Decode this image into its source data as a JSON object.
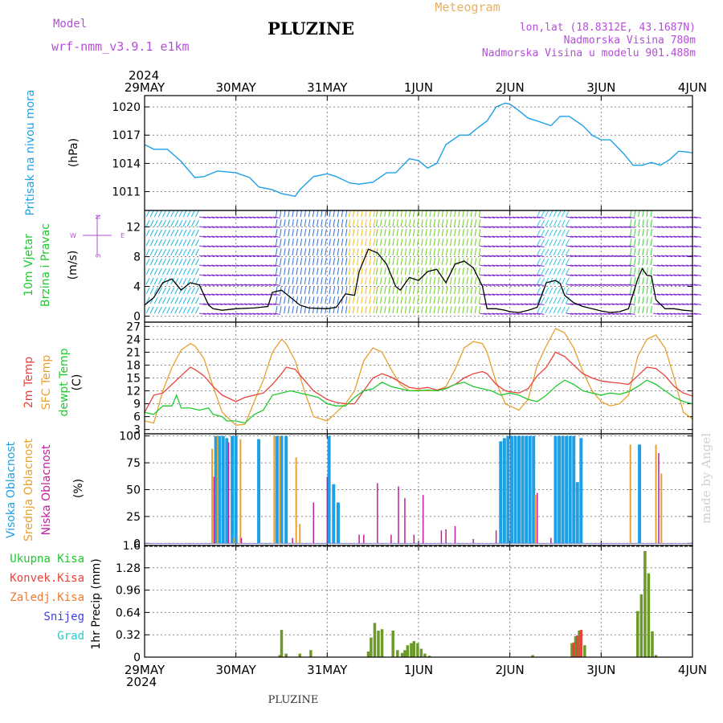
{
  "header": {
    "model_label": "Model",
    "model_name": "wrf-nmm_v3.9.1 e1km",
    "station": "PLUZINE",
    "meteogram_label": "Meteogram",
    "lonlat": "lon,lat (18.8312E, 43.1687N)",
    "elevation": "Nadmorska Visina 780m",
    "model_elevation": "Nadmorska Visina u modelu 901.488m",
    "year_top": "2024",
    "year_bottom": "2024",
    "footer_station": "PLUZINE",
    "credit": "made by Angel"
  },
  "time_axis": {
    "labels": [
      "29MAY",
      "30MAY",
      "31MAY",
      "1JUN",
      "2JUN",
      "3JUN",
      "4JUN"
    ]
  },
  "colors": {
    "pressure": "#1ea0e6",
    "wind_speed": "#000000",
    "wind_gust": "#e04020",
    "temp_2m": "#e8423c",
    "temp_sfc": "#e8a030",
    "dewpoint": "#22c830",
    "cloud_high": "#1ea0e6",
    "cloud_mid": "#e8a030",
    "cloud_low": "#c020a0",
    "precip_total": "#22c830",
    "precip_conv": "#e8423c",
    "precip_frozen": "#f07830",
    "snow": "#4040e0",
    "graupel": "#30c8c8"
  },
  "chart_data": [
    {
      "type": "line",
      "ylabel": [
        "Pritisak na nivou mora",
        "(hPa)"
      ],
      "yticks": [
        1011,
        1014,
        1017,
        1020
      ],
      "ylim": [
        1009,
        1021.2
      ],
      "series": [
        {
          "x": [
            0,
            0.1,
            0.25,
            0.4,
            0.55,
            0.65,
            0.8,
            1.0,
            1.15,
            1.25,
            1.4,
            1.5,
            1.65,
            1.7,
            1.85,
            2.0,
            2.1,
            2.25,
            2.35,
            2.5,
            2.65,
            2.75,
            2.9,
            3.0,
            3.1,
            3.2,
            3.3,
            3.45,
            3.55,
            3.65,
            3.75,
            3.85,
            3.95,
            4.0,
            4.1,
            4.2,
            4.3,
            4.45,
            4.55,
            4.65,
            4.8,
            4.9,
            5.0,
            5.1,
            5.25,
            5.35,
            5.45,
            5.55,
            5.65,
            5.75,
            5.85,
            5.95,
            6.0
          ],
          "y": [
            1016,
            1015.5,
            1015.5,
            1014.2,
            1012.5,
            1012.6,
            1013.2,
            1013.0,
            1012.5,
            1011.5,
            1011.2,
            1010.8,
            1010.5,
            1011.2,
            1012.6,
            1012.9,
            1012.6,
            1011.9,
            1011.8,
            1012.0,
            1013.0,
            1013.0,
            1014.5,
            1014.3,
            1013.5,
            1014.0,
            1016.0,
            1017.0,
            1017.0,
            1017.8,
            1018.5,
            1020.0,
            1020.4,
            1020.3,
            1019.6,
            1018.8,
            1018.5,
            1018.0,
            1019.0,
            1019.0,
            1018.0,
            1017.0,
            1016.5,
            1016.5,
            1015.0,
            1013.8,
            1013.8,
            1014.1,
            1013.8,
            1014.4,
            1015.3,
            1015.2,
            1015.1
          ]
        }
      ]
    },
    {
      "type": "line",
      "ylabel": [
        "10m Vjetar",
        "Brzina i Pravac",
        "(m/s)"
      ],
      "compass": [
        "N",
        "W",
        "E",
        "S"
      ],
      "yticks": [
        0,
        4,
        8,
        12
      ],
      "ylim": [
        -0.8,
        14.2
      ],
      "series": [
        {
          "x": [
            0,
            0.1,
            0.2,
            0.3,
            0.4,
            0.5,
            0.6,
            0.7,
            0.75,
            0.85,
            1.0,
            1.2,
            1.35,
            1.4,
            1.5,
            1.6,
            1.7,
            1.8,
            2.0,
            2.1,
            2.2,
            2.3,
            2.35,
            2.45,
            2.55,
            2.65,
            2.75,
            2.8,
            2.9,
            3.0,
            3.1,
            3.2,
            3.3,
            3.4,
            3.5,
            3.6,
            3.7,
            3.75,
            3.85,
            3.95,
            4.0,
            4.1,
            4.2,
            4.3,
            4.4,
            4.5,
            4.55,
            4.6,
            4.7,
            4.8,
            4.9,
            5.0,
            5.1,
            5.2,
            5.3,
            5.4,
            5.45,
            5.5,
            5.55,
            5.6,
            5.7,
            5.8,
            5.9,
            6.0
          ],
          "y": [
            1.5,
            2.5,
            4.5,
            5.0,
            3.5,
            4.5,
            4.2,
            1.5,
            1.0,
            0.8,
            1.0,
            1.1,
            1.3,
            3.2,
            3.5,
            2.5,
            1.5,
            1.1,
            1.0,
            1.2,
            3.0,
            2.8,
            6.0,
            9.0,
            8.5,
            7.0,
            4.0,
            3.5,
            5.2,
            4.8,
            6.0,
            6.3,
            4.5,
            7.0,
            7.4,
            6.5,
            4.0,
            1.0,
            1.0,
            0.8,
            0.6,
            0.5,
            0.8,
            1.2,
            4.5,
            4.8,
            4.4,
            2.8,
            1.8,
            1.3,
            1.0,
            0.7,
            0.5,
            0.6,
            1.0,
            5.0,
            6.4,
            5.5,
            5.4,
            2.2,
            1.0,
            1.0,
            0.8,
            0.7
          ]
        }
      ]
    },
    {
      "type": "line",
      "ylabel": [
        "2m Temp",
        "SFC Temp",
        "dewpt Temp",
        "(C)"
      ],
      "yticks": [
        3,
        6,
        9,
        12,
        15,
        18,
        21,
        24,
        27
      ],
      "ylim": [
        2,
        28
      ],
      "series": [
        {
          "name": "2m Temp",
          "x": [
            0,
            0.1,
            0.2,
            0.3,
            0.4,
            0.5,
            0.55,
            0.65,
            0.75,
            0.85,
            1.0,
            1.1,
            1.2,
            1.3,
            1.4,
            1.5,
            1.55,
            1.65,
            1.75,
            1.85,
            2.0,
            2.1,
            2.2,
            2.3,
            2.4,
            2.5,
            2.6,
            2.7,
            2.8,
            2.9,
            3.0,
            3.1,
            3.2,
            3.3,
            3.4,
            3.5,
            3.6,
            3.7,
            3.75,
            3.85,
            3.95,
            4.0,
            4.1,
            4.2,
            4.3,
            4.4,
            4.5,
            4.6,
            4.7,
            4.8,
            4.9,
            5.0,
            5.1,
            5.2,
            5.3,
            5.4,
            5.5,
            5.6,
            5.7,
            5.8,
            5.9,
            6.0
          ],
          "y": [
            7,
            11,
            11.5,
            13.5,
            15.5,
            17.5,
            17,
            15.5,
            13,
            11,
            9.5,
            10.5,
            11,
            11.5,
            13.5,
            16,
            17.5,
            17,
            14.5,
            12,
            10,
            9.3,
            9,
            9,
            12,
            15,
            16,
            15.2,
            14,
            12.8,
            12.5,
            12.8,
            12.2,
            12.6,
            13.5,
            15,
            16,
            16.5,
            16,
            13.5,
            12,
            11.8,
            11.5,
            12.5,
            15.5,
            17.5,
            21,
            20,
            18,
            16,
            15,
            14.3,
            14,
            13.8,
            13.5,
            15.5,
            17.5,
            17.2,
            15.5,
            13,
            11.5,
            10.8
          ]
        },
        {
          "name": "SFC Temp",
          "x": [
            0,
            0.1,
            0.2,
            0.3,
            0.4,
            0.5,
            0.55,
            0.65,
            0.75,
            0.85,
            1.0,
            1.1,
            1.2,
            1.3,
            1.4,
            1.5,
            1.55,
            1.65,
            1.75,
            1.85,
            2.0,
            2.1,
            2.2,
            2.3,
            2.4,
            2.5,
            2.6,
            2.7,
            2.8,
            2.9,
            3.0,
            3.1,
            3.2,
            3.3,
            3.4,
            3.5,
            3.6,
            3.7,
            3.75,
            3.85,
            3.95,
            4.0,
            4.1,
            4.2,
            4.3,
            4.4,
            4.5,
            4.6,
            4.7,
            4.8,
            4.9,
            5.0,
            5.1,
            5.2,
            5.3,
            5.4,
            5.5,
            5.6,
            5.7,
            5.8,
            5.9,
            6.0
          ],
          "y": [
            5,
            4.5,
            12,
            17.5,
            21.5,
            23,
            22.5,
            19.5,
            13,
            7,
            4,
            4.2,
            9.5,
            14.5,
            21,
            24,
            23,
            19,
            12,
            6,
            5,
            7,
            9,
            12,
            19,
            22,
            21,
            17,
            13.5,
            12,
            12.2,
            12,
            12.1,
            13,
            17,
            22,
            23.5,
            23,
            21,
            14,
            9,
            8.5,
            7.5,
            10,
            18,
            22.5,
            26.5,
            25.5,
            22,
            16.5,
            12,
            9.5,
            8.5,
            9,
            11,
            20,
            24,
            25,
            22,
            15,
            7,
            5.5
          ]
        },
        {
          "name": "dewpt Temp",
          "x": [
            0,
            0.1,
            0.2,
            0.3,
            0.35,
            0.4,
            0.5,
            0.6,
            0.7,
            0.75,
            0.85,
            0.9,
            1.0,
            1.1,
            1.2,
            1.3,
            1.4,
            1.5,
            1.6,
            1.7,
            1.8,
            1.9,
            2.0,
            2.1,
            2.2,
            2.3,
            2.4,
            2.5,
            2.6,
            2.7,
            2.8,
            2.9,
            3.0,
            3.1,
            3.2,
            3.3,
            3.4,
            3.5,
            3.6,
            3.7,
            3.8,
            3.9,
            4.0,
            4.1,
            4.2,
            4.3,
            4.4,
            4.5,
            4.6,
            4.7,
            4.8,
            4.9,
            5.0,
            5.1,
            5.2,
            5.3,
            5.4,
            5.5,
            5.6,
            5.7,
            5.8,
            5.9,
            6.0
          ],
          "y": [
            7,
            6.5,
            8.5,
            8.5,
            11,
            8,
            8,
            7.5,
            8,
            6.5,
            6,
            5,
            5,
            4.5,
            6.5,
            7.5,
            11,
            11.5,
            12,
            11.5,
            11,
            10.5,
            9,
            8.5,
            8.5,
            10.5,
            12,
            12.5,
            14,
            13,
            12.5,
            12,
            12,
            12.2,
            12,
            12.5,
            13.5,
            14,
            13,
            12.5,
            12,
            11,
            11.5,
            11,
            10,
            9.5,
            11,
            13,
            14.5,
            13.5,
            12,
            11.5,
            11,
            11.5,
            11.2,
            11.8,
            13,
            14.5,
            13.5,
            12,
            10.5,
            9.5,
            9
          ]
        }
      ]
    },
    {
      "type": "bar",
      "ylabel": [
        "Visoka Oblacnost",
        "Srednja Oblacnost",
        "Niska Oblacnost",
        "(%)"
      ],
      "yticks": [
        0,
        25,
        50,
        75,
        100
      ],
      "ylim": [
        -2,
        102
      ],
      "series": [
        {
          "name": "Visoka Oblacnost",
          "x": [
            0.78,
            0.82,
            0.86,
            0.9,
            0.96,
            1.0,
            1.25,
            1.45,
            1.5,
            1.55,
            2.02,
            2.07,
            2.12,
            3.9,
            3.94,
            3.98,
            4.02,
            4.06,
            4.1,
            4.14,
            4.18,
            4.22,
            4.26,
            4.5,
            4.54,
            4.58,
            4.62,
            4.66,
            4.7,
            4.74,
            4.78,
            5.42
          ],
          "y": [
            100,
            100,
            100,
            98,
            100,
            100,
            97,
            100,
            100,
            100,
            100,
            55,
            38,
            95,
            98,
            100,
            100,
            100,
            100,
            100,
            100,
            100,
            100,
            100,
            100,
            100,
            100,
            100,
            100,
            57,
            98,
            92
          ]
        },
        {
          "name": "Srednja Oblacnost",
          "x": [
            0.74,
            0.8,
            0.98,
            1.05,
            1.42,
            1.48,
            1.66,
            1.7,
            4.28,
            5.32,
            5.6,
            5.66
          ],
          "y": [
            88,
            100,
            5,
            97,
            100,
            100,
            80,
            18,
            45,
            92,
            92,
            65
          ]
        },
        {
          "name": "Niska Oblacnost",
          "x": [
            0.76,
            0.92,
            1.06,
            1.62,
            1.85,
            2.0,
            2.35,
            2.4,
            2.55,
            2.7,
            2.78,
            2.85,
            2.95,
            3.05,
            3.25,
            3.3,
            3.4,
            3.6,
            3.85,
            4.3,
            4.45,
            5.63
          ],
          "y": [
            62,
            94,
            5,
            5,
            38,
            62,
            8,
            8,
            56,
            8,
            53,
            42,
            8,
            45,
            12,
            13,
            16,
            4,
            12,
            47,
            5,
            84
          ]
        }
      ]
    },
    {
      "type": "bar",
      "ylabel": [
        "1hr Precip (mm)"
      ],
      "legend": [
        "Ukupna Kisa",
        "Konvek.Kisa",
        "Zaledj.Kisa",
        "Snijeg",
        "Grad"
      ],
      "yticks": [
        0,
        0.32,
        0.64,
        0.96,
        1.28,
        1.6
      ],
      "ylim": [
        0,
        1.6
      ],
      "series": [
        {
          "name": "Ukupna Kisa",
          "x": [
            1.48,
            1.5,
            1.55,
            1.7,
            1.82,
            2.45,
            2.48,
            2.52,
            2.56,
            2.6,
            2.72,
            2.77,
            2.82,
            2.85,
            2.88,
            2.92,
            2.95,
            2.99,
            3.03,
            3.07,
            3.12,
            4.25,
            4.68,
            4.72,
            4.76,
            4.82,
            5.4,
            5.44,
            5.48,
            5.52,
            5.56,
            5.6
          ],
          "y": [
            0.03,
            0.39,
            0.05,
            0.05,
            0.1,
            0.08,
            0.28,
            0.49,
            0.38,
            0.4,
            0.38,
            0.1,
            0.06,
            0.1,
            0.17,
            0.2,
            0.23,
            0.2,
            0.12,
            0.05,
            0.02,
            0.03,
            0.2,
            0.3,
            0.38,
            0.17,
            0.66,
            0.9,
            1.52,
            1.2,
            0.37,
            0.03
          ]
        },
        {
          "name": "Konvek.Kisa",
          "x": [
            4.7,
            4.74,
            4.78
          ],
          "y": [
            0.21,
            0.31,
            0.39
          ]
        }
      ]
    }
  ]
}
